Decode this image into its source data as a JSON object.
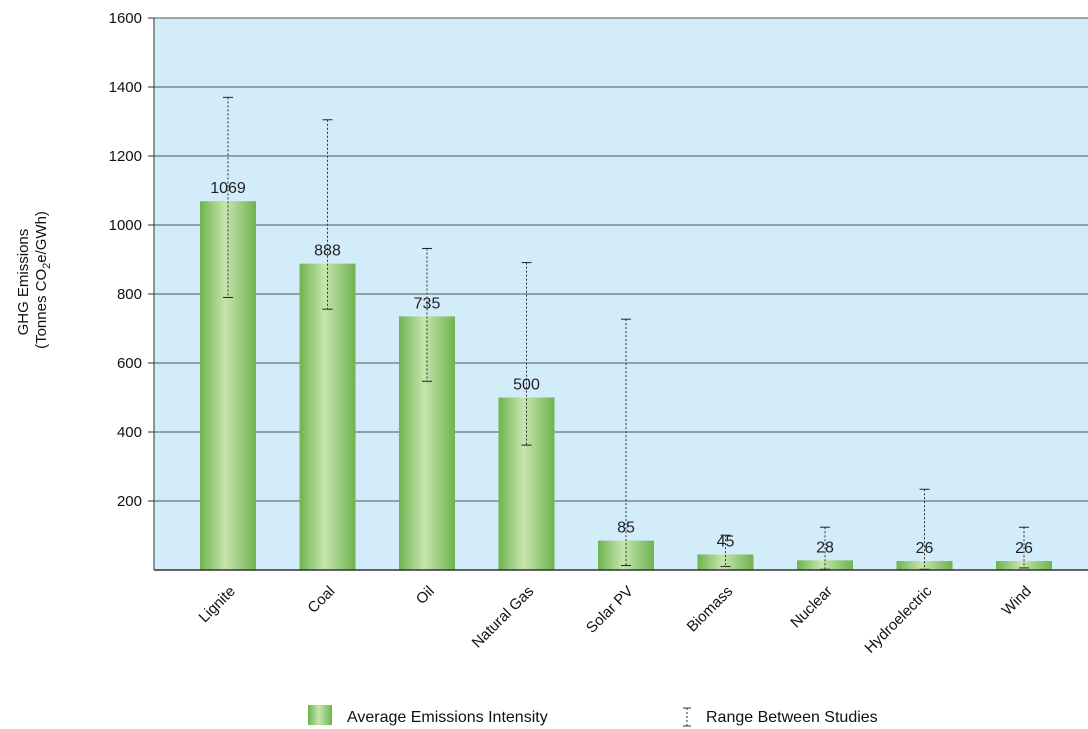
{
  "chart_data": {
    "type": "bar",
    "ylabel": [
      "GHG Emissions",
      "(Tonnes CO",
      "2",
      "e/GWh)"
    ],
    "ylim": [
      0,
      1600
    ],
    "yticks": [
      200,
      400,
      600,
      800,
      1000,
      1200,
      1400,
      1600
    ],
    "grid": true,
    "categories": [
      "Lignite",
      "Coal",
      "Oil",
      "Natural Gas",
      "Solar PV",
      "Biomass",
      "Nuclear",
      "Hydroelectric",
      "Wind"
    ],
    "values": [
      1069,
      888,
      735,
      500,
      85,
      45,
      28,
      26,
      26
    ],
    "data_labels": [
      "1069",
      "888",
      "735",
      "500",
      "85",
      "45",
      "28",
      "26",
      "26"
    ],
    "range_low": [
      790,
      756,
      547,
      362,
      13,
      10,
      2,
      2,
      6
    ],
    "range_high": [
      1370,
      1305,
      932,
      891,
      727,
      101,
      124,
      234,
      124
    ],
    "legend": {
      "placement": "bottom-center",
      "bar_label": "Average Emissions Intensity",
      "range_label": "Range Between Studies"
    },
    "colors": {
      "plot_background": "#d3ecf9",
      "bar_dark": "#6fb34f",
      "bar_light": "#c6e5ae",
      "grid": "#555555"
    }
  }
}
